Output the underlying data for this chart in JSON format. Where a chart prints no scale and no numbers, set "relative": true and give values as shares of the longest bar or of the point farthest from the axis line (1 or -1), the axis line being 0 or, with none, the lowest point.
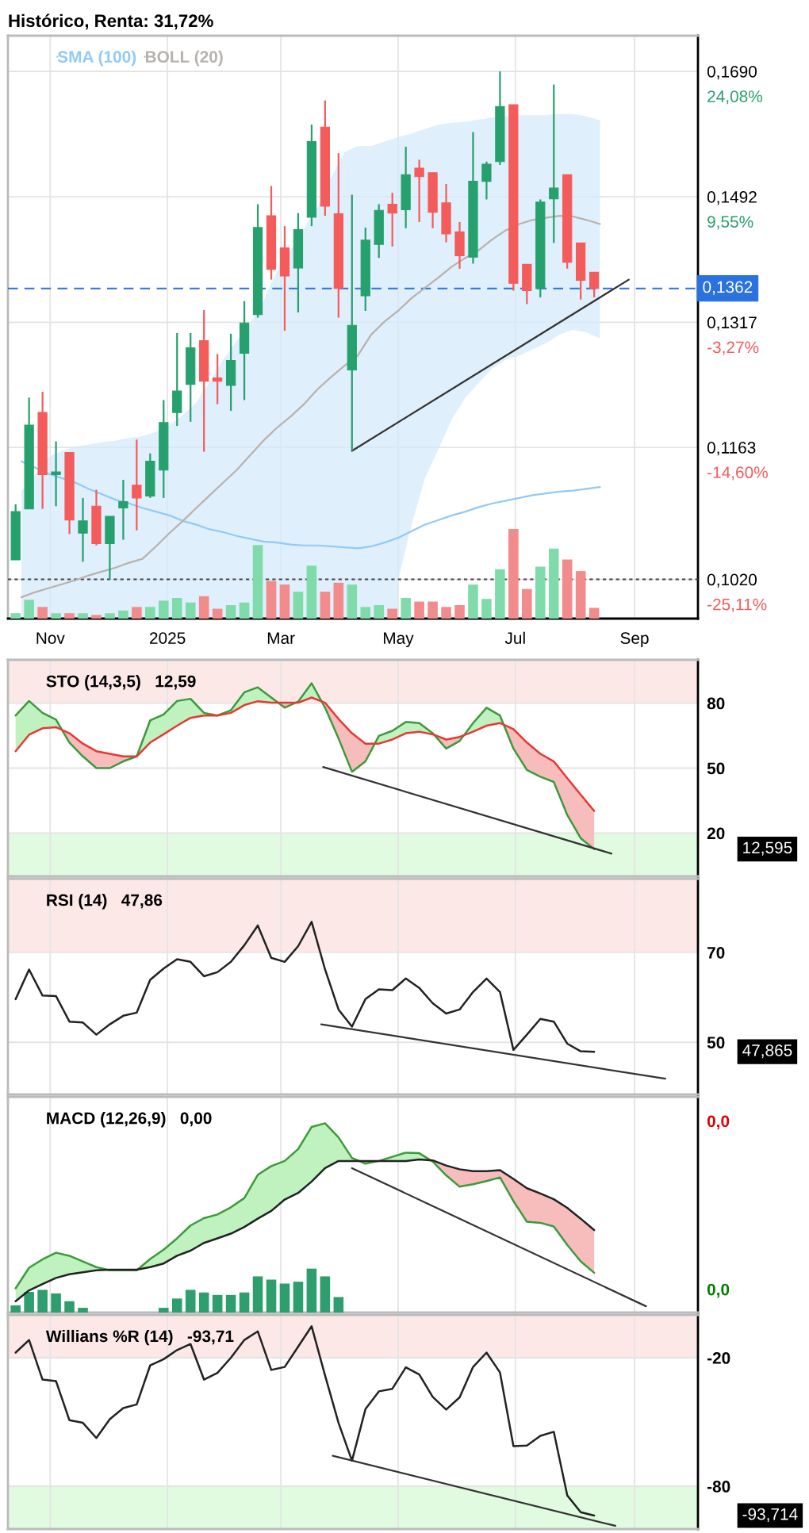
{
  "chart_data": [
    {
      "type": "candlestick",
      "title": "Histórico, Renta: 31,72%",
      "x": [
        "2024-10-14",
        "2024-10-21",
        "2024-10-28",
        "2024-11-04",
        "2024-11-11",
        "2024-11-18",
        "2024-11-25",
        "2024-12-02",
        "2024-12-09",
        "2024-12-16",
        "2024-12-23",
        "2024-12-30",
        "2025-01-06",
        "2025-01-13",
        "2025-01-20",
        "2025-01-27",
        "2025-02-03",
        "2025-02-10",
        "2025-02-17",
        "2025-02-24",
        "2025-03-03",
        "2025-03-10",
        "2025-03-17",
        "2025-03-24",
        "2025-03-31",
        "2025-04-07",
        "2025-04-14",
        "2025-04-21",
        "2025-04-28",
        "2025-05-05",
        "2025-05-12",
        "2025-05-19",
        "2025-05-26",
        "2025-06-02",
        "2025-06-09",
        "2025-06-16",
        "2025-06-23",
        "2025-06-30",
        "2025-07-07",
        "2025-07-14",
        "2025-07-21",
        "2025-07-28",
        "2025-08-04",
        "2025-08-11"
      ],
      "ohlc": [
        [
          0.104,
          0.1099,
          0.104,
          0.1091
        ],
        [
          0.1094,
          0.1222,
          0.1094,
          0.1189
        ],
        [
          0.1204,
          0.1229,
          0.1094,
          0.1132
        ],
        [
          0.1132,
          0.117,
          0.1097,
          0.1135
        ],
        [
          0.1157,
          0.1157,
          0.1067,
          0.1082
        ],
        [
          0.1068,
          0.1106,
          0.1038,
          0.1081
        ],
        [
          0.1097,
          0.1115,
          0.1055,
          0.1057
        ],
        [
          0.1057,
          0.1086,
          0.102,
          0.1086
        ],
        [
          0.1095,
          0.1126,
          0.1061,
          0.1102
        ],
        [
          0.112,
          0.1172,
          0.1071,
          0.1106
        ],
        [
          0.1108,
          0.1156,
          0.1106,
          0.1147
        ],
        [
          0.1137,
          0.1219,
          0.1106,
          0.1192
        ],
        [
          0.1204,
          0.1303,
          0.1188,
          0.123
        ],
        [
          0.1238,
          0.1303,
          0.1193,
          0.1284
        ],
        [
          0.1293,
          0.1333,
          0.1158,
          0.1242
        ],
        [
          0.1246,
          0.1276,
          0.1214,
          0.1242
        ],
        [
          0.1237,
          0.1302,
          0.1206,
          0.1268
        ],
        [
          0.1277,
          0.1345,
          0.1219,
          0.1316
        ],
        [
          0.1327,
          0.1481,
          0.1323,
          0.1447
        ],
        [
          0.1464,
          0.1508,
          0.1374,
          0.1388
        ],
        [
          0.1418,
          0.1449,
          0.1306,
          0.1379
        ],
        [
          0.139,
          0.1468,
          0.133,
          0.1444
        ],
        [
          0.1462,
          0.1603,
          0.1449,
          0.1576
        ],
        [
          0.1599,
          0.1642,
          0.1464,
          0.1478
        ],
        [
          0.1467,
          0.1558,
          0.1323,
          0.1362
        ],
        [
          0.1256,
          0.1495,
          0.1159,
          0.1313
        ],
        [
          0.1352,
          0.1447,
          0.1332,
          0.1429
        ],
        [
          0.1423,
          0.1481,
          0.1404,
          0.1472
        ],
        [
          0.1481,
          0.1498,
          0.142,
          0.1468
        ],
        [
          0.1473,
          0.1568,
          0.1446,
          0.1525
        ],
        [
          0.1535,
          0.1548,
          0.1455,
          0.1522
        ],
        [
          0.1528,
          0.1528,
          0.1446,
          0.1469
        ],
        [
          0.1483,
          0.1511,
          0.1426,
          0.1438
        ],
        [
          0.1441,
          0.1455,
          0.1389,
          0.1407
        ],
        [
          0.1405,
          0.1591,
          0.1396,
          0.1515
        ],
        [
          0.1515,
          0.1545,
          0.1488,
          0.1541
        ],
        [
          0.1545,
          0.169,
          0.154,
          0.1632
        ],
        [
          0.1635,
          0.1635,
          0.1359,
          0.1369
        ],
        [
          0.1395,
          0.1395,
          0.1341,
          0.1359
        ],
        [
          0.1362,
          0.1488,
          0.135,
          0.1484
        ],
        [
          0.1489,
          0.1668,
          0.1425,
          0.1505
        ],
        [
          0.1525,
          0.1525,
          0.1389,
          0.1398
        ],
        [
          0.1425,
          0.1425,
          0.1347,
          0.1373
        ],
        [
          0.1384,
          0.1384,
          0.135,
          0.1362
        ]
      ],
      "colors": [
        "#26a06d",
        "#26a06d",
        "#f45b5b",
        "#26a06d",
        "#f45b5b",
        "#26a06d",
        "#f45b5b",
        "#26a06d",
        "#26a06d",
        "#f45b5b",
        "#26a06d",
        "#26a06d",
        "#26a06d",
        "#26a06d",
        "#f45b5b",
        "#f45b5b",
        "#26a06d",
        "#26a06d",
        "#26a06d",
        "#f45b5b",
        "#f45b5b",
        "#26a06d",
        "#26a06d",
        "#f45b5b",
        "#f45b5b",
        "#26a06d",
        "#26a06d",
        "#26a06d",
        "#f45b5b",
        "#26a06d",
        "#f45b5b",
        "#f45b5b",
        "#f45b5b",
        "#f45b5b",
        "#26a06d",
        "#26a06d",
        "#26a06d",
        "#f45b5b",
        "#f45b5b",
        "#26a06d",
        "#26a06d",
        "#f45b5b",
        "#f45b5b",
        "#f45b5b"
      ],
      "series": [
        {
          "name": "SMA (100)",
          "type": "line",
          "color": "#90caf9",
          "x": [
            "2024-10-17",
            "2024-10-24",
            "2024-10-31",
            "2024-11-07",
            "2024-11-14",
            "2024-11-21",
            "2024-11-28",
            "2024-12-05",
            "2024-12-12",
            "2024-12-19",
            "2024-12-26",
            "2025-01-02",
            "2025-01-09",
            "2025-01-16",
            "2025-01-23",
            "2025-01-30",
            "2025-02-06",
            "2025-02-13",
            "2025-02-20",
            "2025-02-27",
            "2025-03-06",
            "2025-03-13",
            "2025-03-20",
            "2025-03-27",
            "2025-04-03",
            "2025-04-10",
            "2025-04-17",
            "2025-04-24",
            "2025-05-01",
            "2025-05-08",
            "2025-05-15",
            "2025-05-22",
            "2025-05-29",
            "2025-06-05",
            "2025-06-12",
            "2025-06-19",
            "2025-06-26",
            "2025-07-03",
            "2025-07-10",
            "2025-07-17",
            "2025-07-24",
            "2025-07-31",
            "2025-08-07",
            "2025-08-14"
          ],
          "values": [
            0.1147,
            0.114,
            0.1133,
            0.1128,
            0.1123,
            0.1116,
            0.111,
            0.1104,
            0.11,
            0.1095,
            0.1091,
            0.1087,
            0.1081,
            0.1077,
            0.1072,
            0.1069,
            0.1065,
            0.1062,
            0.1059,
            0.1058,
            0.1056,
            0.1055,
            0.1055,
            0.1054,
            0.1053,
            0.1052,
            0.1054,
            0.1058,
            0.1063,
            0.107,
            0.1077,
            0.1082,
            0.1087,
            0.1091,
            0.1096,
            0.11,
            0.1103,
            0.1106,
            0.1109,
            0.1111,
            0.1113,
            0.1114,
            0.1116,
            0.1118
          ]
        },
        {
          "name": "BOLL (20)",
          "type": "line",
          "color": "#b8b2ae",
          "x": [
            "2024-10-17",
            "2024-10-24",
            "2024-10-31",
            "2024-11-07",
            "2024-11-14",
            "2024-11-21",
            "2024-11-28",
            "2024-12-05",
            "2024-12-12",
            "2024-12-19",
            "2024-12-26",
            "2025-01-02",
            "2025-01-09",
            "2025-01-16",
            "2025-01-23",
            "2025-01-30",
            "2025-02-06",
            "2025-02-13",
            "2025-02-20",
            "2025-02-27",
            "2025-03-06",
            "2025-03-13",
            "2025-03-20",
            "2025-03-27",
            "2025-04-03",
            "2025-04-10",
            "2025-04-17",
            "2025-04-24",
            "2025-05-01",
            "2025-05-08",
            "2025-05-15",
            "2025-05-22",
            "2025-05-29",
            "2025-06-05",
            "2025-06-12",
            "2025-06-19",
            "2025-06-26",
            "2025-07-03",
            "2025-07-10",
            "2025-07-17",
            "2025-07-24",
            "2025-07-31",
            "2025-08-07",
            "2025-08-14"
          ],
          "values": [
            0.1002,
            0.1007,
            0.1011,
            0.1015,
            0.1019,
            0.1024,
            0.1028,
            0.1032,
            0.1037,
            0.1041,
            0.1054,
            0.1068,
            0.1081,
            0.1095,
            0.1109,
            0.1123,
            0.1137,
            0.1154,
            0.1171,
            0.1186,
            0.1199,
            0.1214,
            0.1232,
            0.1247,
            0.1261,
            0.1274,
            0.1301,
            0.1318,
            0.1332,
            0.1349,
            0.1363,
            0.1377,
            0.1392,
            0.1404,
            0.1415,
            0.143,
            0.1443,
            0.1452,
            0.1458,
            0.1461,
            0.1464,
            0.1463,
            0.1458,
            0.1452
          ],
          "upper": [
            null,
            null,
            null,
            null,
            null,
            null,
            null,
            null,
            null,
            null,
            null,
            null,
            null,
            null,
            null,
            null,
            null,
            null,
            null,
            null,
            null,
            null,
            null,
            null,
            null,
            null,
            null,
            null,
            0.1583,
            0.1589,
            0.1596,
            0.1603,
            0.1606,
            0.1607,
            0.1611,
            0.1614,
            0.1616,
            0.1618,
            0.1618,
            0.1618,
            0.162,
            0.162,
            0.1616,
            0.161
          ],
          "lower": [
            null,
            null,
            null,
            null,
            null,
            null,
            null,
            null,
            null,
            null,
            null,
            null,
            null,
            null,
            null,
            null,
            null,
            null,
            null,
            null,
            null,
            null,
            null,
            null,
            null,
            null,
            null,
            null,
            0.1019,
            0.1077,
            0.1128,
            0.1161,
            0.1196,
            0.1222,
            0.124,
            0.1258,
            0.1269,
            0.1274,
            0.1282,
            0.129,
            0.1301,
            0.1307,
            0.1304,
            0.1296
          ]
        },
        {
          "type": "area",
          "color": "#d4eafb",
          "x": [
            "2024-10-17",
            "2024-10-24",
            "2024-10-31",
            "2024-11-07",
            "2024-11-14",
            "2024-11-21",
            "2024-11-28",
            "2024-12-05",
            "2024-12-12",
            "2024-12-19",
            "2024-12-26",
            "2025-01-02",
            "2025-01-09",
            "2025-01-16",
            "2025-01-23",
            "2025-01-30",
            "2025-02-06",
            "2025-02-13",
            "2025-02-20",
            "2025-02-27",
            "2025-03-06",
            "2025-03-13",
            "2025-03-20",
            "2025-03-27",
            "2025-04-03",
            "2025-04-10",
            "2025-04-17",
            "2025-04-24",
            "2025-05-01"
          ],
          "values": [
            0.1114,
            0.1131,
            0.1152,
            0.1159,
            0.1164,
            0.1166,
            0.1169,
            0.1171,
            0.1174,
            0.1176,
            0.1181,
            0.1189,
            0.1201,
            0.1216,
            0.1242,
            0.1269,
            0.1293,
            0.1315,
            0.1346,
            0.1386,
            0.1415,
            0.1446,
            0.1476,
            0.152,
            0.1559,
            0.1569,
            0.1569,
            0.1576,
            0.1583
          ]
        },
        {
          "type": "line",
          "color": "#333333",
          "x": [
            "2025-04-07",
            "2025-08-29"
          ],
          "values": [
            0.1159,
            0.1374
          ]
        }
      ],
      "ref_lines": [
        {
          "axis": "y",
          "value": 0.1362,
          "label": "0,1362",
          "color": "#2a72e0",
          "line_style": "dashed"
        },
        {
          "axis": "y",
          "value": 0.102,
          "color": "#444444",
          "line_style": "dotted"
        }
      ],
      "log": true,
      "ylim": [
        0.0981,
        0.1751
      ],
      "yticks": [
        {
          "value": 0.169,
          "label": "0,1690"
        },
        {
          "value": 0.1492,
          "label": "0,1492"
        },
        {
          "value": 0.1317,
          "label": "0,1317"
        },
        {
          "value": 0.1163,
          "label": "0,1163"
        },
        {
          "value": 0.102,
          "label": "0,1020"
        }
      ],
      "xlim": [
        "2024-10-10",
        "2025-10-04"
      ],
      "xticks": [
        {
          "value": "2024-11-01",
          "label": "Nov"
        },
        {
          "value": "2025-01-01",
          "label": "2025"
        },
        {
          "value": "2025-03-01",
          "label": "Mar"
        },
        {
          "value": "2025-05-01",
          "label": "May"
        },
        {
          "value": "2025-07-01",
          "label": "Jul"
        },
        {
          "value": "2025-09-01",
          "label": "Sep"
        }
      ],
      "annotations": [
        "24,08%",
        "9,55%",
        "-3,27%",
        "-14,60%",
        "-25,11%"
      ],
      "grid": true,
      "legend": "top left",
      "tick_labels": "xy"
    },
    {
      "type": "bar",
      "relative": true,
      "tick_labels": false,
      "x": [
        "2024-10-14",
        "2024-10-21",
        "2024-10-28",
        "2024-11-04",
        "2024-11-11",
        "2024-11-18",
        "2024-11-25",
        "2024-12-02",
        "2024-12-09",
        "2024-12-16",
        "2024-12-23",
        "2024-12-30",
        "2025-01-06",
        "2025-01-13",
        "2025-01-20",
        "2025-01-27",
        "2025-02-03",
        "2025-02-10",
        "2025-02-17",
        "2025-02-24",
        "2025-03-03",
        "2025-03-10",
        "2025-03-17",
        "2025-03-24",
        "2025-03-31",
        "2025-04-07",
        "2025-04-14",
        "2025-04-21",
        "2025-04-28",
        "2025-05-05",
        "2025-05-12",
        "2025-05-19",
        "2025-05-26",
        "2025-06-02",
        "2025-06-09",
        "2025-06-16",
        "2025-06-23",
        "2025-06-30",
        "2025-07-07",
        "2025-07-14",
        "2025-07-21",
        "2025-07-28",
        "2025-08-04",
        "2025-08-11"
      ],
      "values": [
        0.06,
        0.21,
        0.13,
        0.06,
        0.06,
        0.06,
        0.04,
        0.06,
        0.09,
        0.13,
        0.13,
        0.2,
        0.23,
        0.18,
        0.25,
        0.11,
        0.15,
        0.18,
        0.82,
        0.42,
        0.38,
        0.3,
        0.59,
        0.3,
        0.4,
        0.38,
        0.13,
        0.15,
        0.11,
        0.23,
        0.19,
        0.19,
        0.13,
        0.15,
        0.38,
        0.22,
        0.55,
        1,
        0.33,
        0.58,
        0.78,
        0.66,
        0.53,
        0.12
      ],
      "colors": [
        "#7fdcaa",
        "#7fdcaa",
        "#f28b8b",
        "#7fdcaa",
        "#f28b8b",
        "#7fdcaa",
        "#f28b8b",
        "#7fdcaa",
        "#7fdcaa",
        "#f28b8b",
        "#7fdcaa",
        "#7fdcaa",
        "#7fdcaa",
        "#7fdcaa",
        "#f28b8b",
        "#f28b8b",
        "#7fdcaa",
        "#7fdcaa",
        "#7fdcaa",
        "#f28b8b",
        "#f28b8b",
        "#7fdcaa",
        "#7fdcaa",
        "#f28b8b",
        "#f28b8b",
        "#7fdcaa",
        "#7fdcaa",
        "#7fdcaa",
        "#f28b8b",
        "#7fdcaa",
        "#f28b8b",
        "#f28b8b",
        "#f28b8b",
        "#f28b8b",
        "#7fdcaa",
        "#7fdcaa",
        "#7fdcaa",
        "#f28b8b",
        "#f28b8b",
        "#7fdcaa",
        "#7fdcaa",
        "#f28b8b",
        "#f28b8b",
        "#f28b8b"
      ],
      "xlim": [
        "2024-10-10",
        "2025-10-04"
      ]
    },
    {
      "type": "line",
      "title": "STO (14,3,5)   12,59",
      "x": [
        "2024-10-14",
        "2024-10-21",
        "2024-10-28",
        "2024-11-04",
        "2024-11-11",
        "2024-11-18",
        "2024-11-25",
        "2024-12-02",
        "2024-12-09",
        "2024-12-16",
        "2024-12-23",
        "2024-12-30",
        "2025-01-06",
        "2025-01-13",
        "2025-01-20",
        "2025-01-27",
        "2025-02-03",
        "2025-02-10",
        "2025-02-17",
        "2025-02-24",
        "2025-03-03",
        "2025-03-10",
        "2025-03-17",
        "2025-03-24",
        "2025-03-31",
        "2025-04-07",
        "2025-04-14",
        "2025-04-21",
        "2025-04-28",
        "2025-05-05",
        "2025-05-12",
        "2025-05-19",
        "2025-05-26",
        "2025-06-02",
        "2025-06-09",
        "2025-06-16",
        "2025-06-23",
        "2025-06-30",
        "2025-07-07",
        "2025-07-14",
        "2025-07-21",
        "2025-07-28",
        "2025-08-04",
        "2025-08-11"
      ],
      "series": [
        {
          "color": "#3c9a3c",
          "values": [
            74.3,
            81.0,
            75.5,
            72.4,
            61.8,
            55.4,
            50.0,
            50.0,
            53.1,
            55.4,
            72.0,
            74.8,
            81.0,
            82.0,
            75.5,
            74.3,
            76.7,
            85.0,
            87.3,
            82.6,
            77.9,
            80.7,
            89.2,
            77.9,
            63.7,
            48.3,
            53.1,
            64.9,
            67.2,
            71.3,
            70.8,
            66.1,
            59.0,
            62.5,
            70.8,
            77.9,
            74.3,
            59.0,
            49.1,
            46.0,
            43.6,
            28.3,
            17.6,
            12.6
          ]
        },
        {
          "color": "#e53935",
          "values": [
            57.8,
            65.4,
            68.4,
            68.9,
            66.1,
            61.3,
            57.8,
            56.6,
            55.4,
            55.4,
            61.8,
            65.6,
            69.6,
            73.2,
            74.3,
            74.3,
            75.5,
            79.1,
            80.9,
            80.2,
            80.2,
            80.2,
            82.6,
            80.2,
            72.7,
            66.1,
            61.3,
            61.3,
            63.2,
            66.1,
            66.8,
            65.6,
            63.2,
            64.4,
            66.8,
            69.6,
            70.8,
            68.0,
            61.8,
            56.6,
            53.1,
            45.3,
            37.7,
            30.2
          ]
        },
        {
          "color": "#333333",
          "x": [
            "2025-03-23",
            "2025-08-20"
          ],
          "values": [
            50.5,
            10.5
          ]
        }
      ],
      "bands": [
        {
          "axis": "y",
          "from": 80,
          "to": 100,
          "color": "#fde8e8"
        },
        {
          "axis": "y",
          "from": 0,
          "to": 20,
          "color": "#e0fbe0"
        }
      ],
      "annotations": [
        "12,595"
      ],
      "ylim": [
        0,
        100
      ],
      "yticks": [
        80,
        50,
        20
      ],
      "xlim": [
        "2024-10-10",
        "2025-10-04"
      ],
      "xticks": [
        {
          "value": "2024-11-01",
          "label": null
        },
        {
          "value": "2025-01-01",
          "label": null
        },
        {
          "value": "2025-03-01",
          "label": null
        },
        {
          "value": "2025-05-01",
          "label": null
        },
        {
          "value": "2025-07-01",
          "label": null
        },
        {
          "value": "2025-09-01",
          "label": null
        }
      ],
      "grid": true,
      "tick_labels": "y"
    },
    {
      "type": "line",
      "title": "RSI (14)   47,86",
      "x": [
        "2024-10-14",
        "2024-10-21",
        "2024-10-28",
        "2024-11-04",
        "2024-11-11",
        "2024-11-18",
        "2024-11-25",
        "2024-12-02",
        "2024-12-09",
        "2024-12-16",
        "2024-12-23",
        "2024-12-30",
        "2025-01-06",
        "2025-01-13",
        "2025-01-20",
        "2025-01-27",
        "2025-02-03",
        "2025-02-10",
        "2025-02-17",
        "2025-02-24",
        "2025-03-03",
        "2025-03-10",
        "2025-03-17",
        "2025-03-24",
        "2025-03-31",
        "2025-04-07",
        "2025-04-14",
        "2025-04-21",
        "2025-04-28",
        "2025-05-05",
        "2025-05-12",
        "2025-05-19",
        "2025-05-26",
        "2025-06-02",
        "2025-06-09",
        "2025-06-16",
        "2025-06-23",
        "2025-06-30",
        "2025-07-07",
        "2025-07-14",
        "2025-07-21",
        "2025-07-28",
        "2025-08-04",
        "2025-08-11"
      ],
      "series": [
        {
          "color": "#222222",
          "values": [
            59.6,
            66.2,
            60.4,
            60.3,
            54.6,
            54.4,
            51.7,
            54.0,
            55.9,
            56.6,
            63.9,
            66.4,
            68.5,
            67.9,
            64.7,
            65.6,
            67.9,
            71.6,
            76.0,
            68.8,
            67.9,
            71.4,
            76.8,
            66.2,
            57.3,
            53.5,
            59.6,
            61.8,
            61.6,
            64.2,
            62.1,
            58.7,
            56.4,
            57.3,
            61.2,
            64.2,
            61.2,
            48.3,
            51.7,
            55.2,
            54.6,
            49.7,
            48.0,
            47.9
          ]
        },
        {
          "color": "#333333",
          "x": [
            "2025-03-22",
            "2025-09-17"
          ],
          "values": [
            54.0,
            41.9
          ]
        }
      ],
      "bands": [
        {
          "axis": "y",
          "from": 70,
          "to": 86.4,
          "color": "#fde8e8"
        }
      ],
      "annotations": [
        "47,865"
      ],
      "ylim": [
        38.4,
        86.4
      ],
      "yticks": [
        70,
        50
      ],
      "xlim": [
        "2024-10-10",
        "2025-10-04"
      ],
      "xticks": [
        {
          "value": "2024-11-01",
          "label": null
        },
        {
          "value": "2025-01-01",
          "label": null
        },
        {
          "value": "2025-03-01",
          "label": null
        },
        {
          "value": "2025-05-01",
          "label": null
        },
        {
          "value": "2025-07-01",
          "label": null
        },
        {
          "value": "2025-09-01",
          "label": null
        }
      ],
      "grid": true,
      "tick_labels": "y"
    },
    {
      "type": "line",
      "title": "MACD (12,26,9)   0,00",
      "relative": true,
      "x": [
        "2024-10-14",
        "2024-10-21",
        "2024-10-28",
        "2024-11-04",
        "2024-11-11",
        "2024-11-18",
        "2024-11-25",
        "2024-12-02",
        "2024-12-09",
        "2024-12-16",
        "2024-12-23",
        "2024-12-30",
        "2025-01-06",
        "2025-01-13",
        "2025-01-20",
        "2025-01-27",
        "2025-02-03",
        "2025-02-10",
        "2025-02-17",
        "2025-02-24",
        "2025-03-03",
        "2025-03-10",
        "2025-03-17",
        "2025-03-24",
        "2025-03-31",
        "2025-04-07",
        "2025-04-14",
        "2025-04-21",
        "2025-04-28",
        "2025-05-05",
        "2025-05-12",
        "2025-05-19",
        "2025-05-26",
        "2025-06-02",
        "2025-06-09",
        "2025-06-16",
        "2025-06-23",
        "2025-06-30",
        "2025-07-07",
        "2025-07-14",
        "2025-07-21",
        "2025-07-28",
        "2025-08-04",
        "2025-08-11"
      ],
      "series": [
        {
          "color": "#3c9a3c",
          "values": [
            0.128,
            0.237,
            0.281,
            0.316,
            0.3,
            0.27,
            0.24,
            0.223,
            0.223,
            0.223,
            0.283,
            0.332,
            0.392,
            0.46,
            0.499,
            0.518,
            0.556,
            0.605,
            0.728,
            0.774,
            0.801,
            0.864,
            0.981,
            1,
            0.926,
            0.817,
            0.787,
            0.801,
            0.823,
            0.845,
            0.842,
            0.798,
            0.725,
            0.665,
            0.678,
            0.695,
            0.714,
            0.589,
            0.48,
            0.474,
            0.455,
            0.357,
            0.27,
            0.21
          ]
        },
        {
          "color": "#222222",
          "values": [
            0.06,
            0.117,
            0.15,
            0.183,
            0.202,
            0.213,
            0.223,
            0.226,
            0.226,
            0.226,
            0.24,
            0.259,
            0.3,
            0.327,
            0.368,
            0.392,
            0.417,
            0.452,
            0.496,
            0.537,
            0.597,
            0.632,
            0.692,
            0.763,
            0.801,
            0.801,
            0.801,
            0.801,
            0.801,
            0.801,
            0.809,
            0.804,
            0.777,
            0.757,
            0.747,
            0.747,
            0.752,
            0.706,
            0.657,
            0.629,
            0.599,
            0.553,
            0.496,
            0.436
          ]
        },
        {
          "type": "bar",
          "color": "#2e9e6e",
          "values": [
            0.038,
            0.109,
            0.12,
            0.101,
            0.06,
            0.025,
            null,
            null,
            null,
            null,
            null,
            0.025,
            0.074,
            0.12,
            0.106,
            0.093,
            0.093,
            0.106,
            0.191,
            0.174,
            0.153,
            0.163,
            0.232,
            0.191,
            0.082,
            null,
            null,
            null,
            null,
            null,
            null,
            null,
            null,
            null,
            null,
            null,
            null,
            null,
            null,
            null,
            null,
            null,
            null,
            null
          ]
        },
        {
          "color": "#333333",
          "x": [
            "2025-04-07",
            "2025-09-07"
          ],
          "values": [
            0.763,
            0.033
          ]
        }
      ],
      "annotations": [
        "0,0",
        "0,0"
      ],
      "xlim": [
        "2024-10-10",
        "2025-10-04"
      ],
      "xticks": [
        {
          "value": "2024-11-01",
          "label": null
        },
        {
          "value": "2025-01-01",
          "label": null
        },
        {
          "value": "2025-03-01",
          "label": null
        },
        {
          "value": "2025-05-01",
          "label": null
        },
        {
          "value": "2025-07-01",
          "label": null
        },
        {
          "value": "2025-09-01",
          "label": null
        }
      ],
      "grid": true,
      "tick_labels": false
    },
    {
      "type": "line",
      "title": "Willians %R (14)   -93,71",
      "x": [
        "2024-10-14",
        "2024-10-21",
        "2024-10-28",
        "2024-11-04",
        "2024-11-11",
        "2024-11-18",
        "2024-11-25",
        "2024-12-02",
        "2024-12-09",
        "2024-12-16",
        "2024-12-23",
        "2024-12-30",
        "2025-01-06",
        "2025-01-13",
        "2025-01-20",
        "2025-01-27",
        "2025-02-03",
        "2025-02-10",
        "2025-02-17",
        "2025-02-24",
        "2025-03-03",
        "2025-03-10",
        "2025-03-17",
        "2025-03-24",
        "2025-03-31",
        "2025-04-07",
        "2025-04-14",
        "2025-04-21",
        "2025-04-28",
        "2025-05-05",
        "2025-05-12",
        "2025-05-19",
        "2025-05-26",
        "2025-06-02",
        "2025-06-09",
        "2025-06-16",
        "2025-06-23",
        "2025-06-30",
        "2025-07-07",
        "2025-07-14",
        "2025-07-21",
        "2025-07-28",
        "2025-08-04",
        "2025-08-11"
      ],
      "series": [
        {
          "color": "#222222",
          "values": [
            -17.6,
            -11.7,
            -30.2,
            -30.9,
            -49.2,
            -50.4,
            -57.5,
            -48.7,
            -43.5,
            -41.8,
            -23.6,
            -20.7,
            -16.4,
            -13.6,
            -30.2,
            -27.1,
            -20.0,
            -11.7,
            -7.7,
            -25.7,
            -24.3,
            -14.8,
            -5.3,
            -28.3,
            -50.4,
            -68.1,
            -44.0,
            -35.7,
            -34.5,
            -24.5,
            -27.8,
            -38.3,
            -44.2,
            -38.5,
            -24.3,
            -17.6,
            -26.9,
            -61.3,
            -61.0,
            -56.5,
            -54.6,
            -84.3,
            -92.1,
            -93.7
          ]
        },
        {
          "color": "#333333",
          "x": [
            "2025-03-28",
            "2025-08-22"
          ],
          "values": [
            -65.8,
            -98.5
          ]
        }
      ],
      "bands": [
        {
          "axis": "y",
          "from": -20,
          "to": 0,
          "color": "#fde8e8"
        },
        {
          "axis": "y",
          "from": -100,
          "to": -80,
          "color": "#e0fbe0"
        }
      ],
      "annotations": [
        "-93,714"
      ],
      "ylim": [
        -100,
        0
      ],
      "yticks": [
        -20,
        -80
      ],
      "xlim": [
        "2024-10-10",
        "2025-10-04"
      ],
      "xticks": [
        {
          "value": "2024-11-01",
          "label": null
        },
        {
          "value": "2025-01-01",
          "label": null
        },
        {
          "value": "2025-03-01",
          "label": null
        },
        {
          "value": "2025-05-01",
          "label": null
        },
        {
          "value": "2025-07-01",
          "label": null
        },
        {
          "value": "2025-09-01",
          "label": null
        }
      ],
      "grid": true,
      "tick_labels": "y"
    }
  ]
}
